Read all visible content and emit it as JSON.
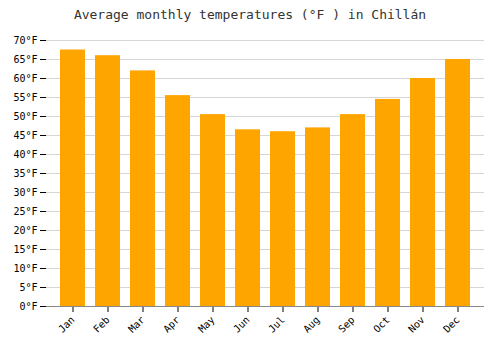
{
  "chart_data": {
    "type": "bar",
    "title": "Average monthly temperatures (°F ) in Chillán",
    "categories": [
      "Jan",
      "Feb",
      "Mar",
      "Apr",
      "May",
      "Jun",
      "Jul",
      "Aug",
      "Sep",
      "Oct",
      "Nov",
      "Dec"
    ],
    "values": [
      67.5,
      66.0,
      62.0,
      55.5,
      50.5,
      46.5,
      46.0,
      47.0,
      50.5,
      54.5,
      60.0,
      65.0
    ],
    "color": "#FFA500",
    "ylim": [
      0,
      70
    ],
    "yticks": [
      {
        "value": 0,
        "label": "0°F"
      },
      {
        "value": 5,
        "label": "5°F"
      },
      {
        "value": 10,
        "label": "10°F"
      },
      {
        "value": 15,
        "label": "15°F"
      },
      {
        "value": 20,
        "label": "20°F"
      },
      {
        "value": 25,
        "label": "25°F"
      },
      {
        "value": 30,
        "label": "30°F"
      },
      {
        "value": 35,
        "label": "35°F"
      },
      {
        "value": 40,
        "label": "40°F"
      },
      {
        "value": 45,
        "label": "45°F"
      },
      {
        "value": 50,
        "label": "50°F"
      },
      {
        "value": 55,
        "label": "55°F"
      },
      {
        "value": 60,
        "label": "60°F"
      },
      {
        "value": 65,
        "label": "65°F"
      },
      {
        "value": 70,
        "label": "70°F"
      }
    ],
    "grid": true
  }
}
